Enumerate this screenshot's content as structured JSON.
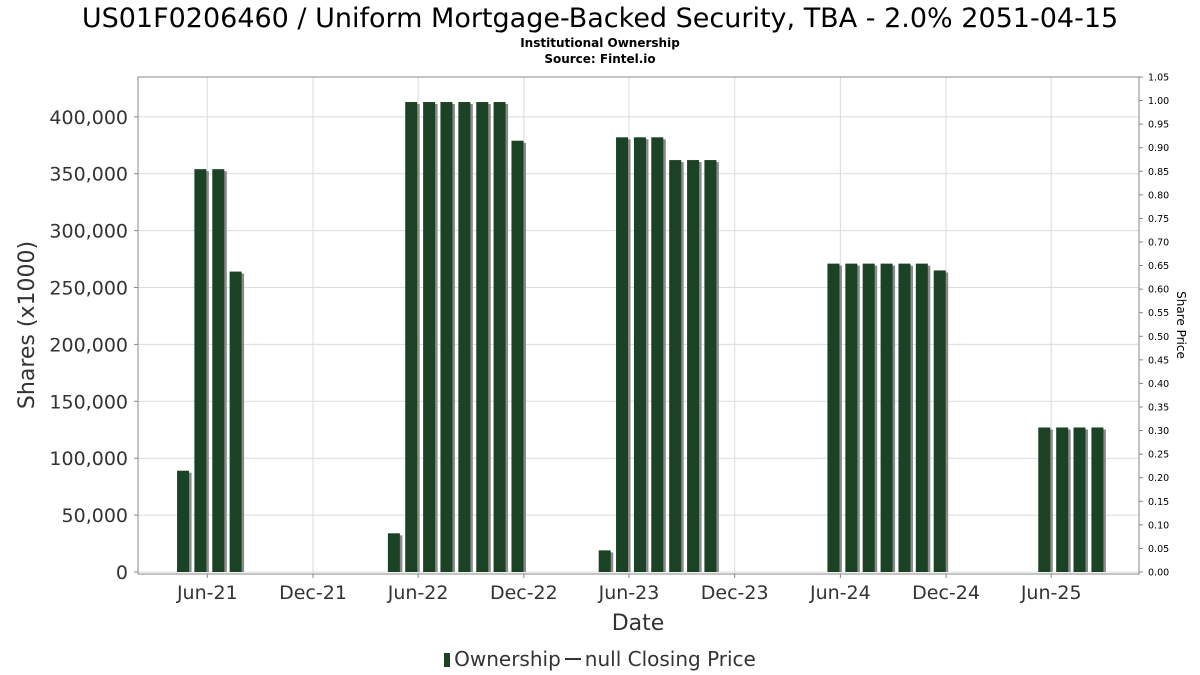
{
  "title": "US01F0206460 / Uniform Mortgage-Backed Security, TBA - 2.0% 2051-04-15",
  "subtitle": "Institutional Ownership",
  "source": "Source: Fintel.io",
  "legend": {
    "ownership": "Ownership",
    "price": "null Closing Price"
  },
  "colors": {
    "bar": "#1b4225",
    "bar_shadow": "#8a8a8a",
    "grid": "#dcdcdc",
    "axis": "#888888",
    "label": "#333333"
  },
  "chart_data": {
    "type": "bar",
    "xlabel": "Date",
    "ylabel": "Shares (x1000)",
    "y2label": "Share Price",
    "ylim": [
      0,
      435000
    ],
    "y2lim": [
      0,
      1.05
    ],
    "y_ticks": [
      0,
      50000,
      100000,
      150000,
      200000,
      250000,
      300000,
      350000,
      400000
    ],
    "y_tick_labels": [
      "0",
      "50,000",
      "100,000",
      "150,000",
      "200,000",
      "250,000",
      "300,000",
      "350,000",
      "400,000"
    ],
    "y2_ticks": [
      "0.00",
      "0.05",
      "0.10",
      "0.15",
      "0.20",
      "0.25",
      "0.30",
      "0.35",
      "0.40",
      "0.45",
      "0.50",
      "0.55",
      "0.60",
      "0.65",
      "0.70",
      "0.75",
      "0.80",
      "0.85",
      "0.90",
      "0.95",
      "1.00",
      "1.05"
    ],
    "x_start": "2021-02-01",
    "x_end": "2025-10-31",
    "x_ticks": [
      {
        "date": "2021-06-01",
        "label": "Jun-21"
      },
      {
        "date": "2021-12-01",
        "label": "Dec-21"
      },
      {
        "date": "2022-06-01",
        "label": "Jun-22"
      },
      {
        "date": "2022-12-01",
        "label": "Dec-22"
      },
      {
        "date": "2023-06-01",
        "label": "Jun-23"
      },
      {
        "date": "2023-12-01",
        "label": "Dec-23"
      },
      {
        "date": "2024-06-01",
        "label": "Jun-24"
      },
      {
        "date": "2024-12-01",
        "label": "Dec-24"
      },
      {
        "date": "2025-06-01",
        "label": "Jun-25"
      }
    ],
    "grid": true,
    "legend_position": "bottom",
    "series": [
      {
        "name": "Ownership",
        "points": [
          {
            "date": "2021-04-20",
            "value": 89000
          },
          {
            "date": "2021-05-20",
            "value": 354000
          },
          {
            "date": "2021-06-20",
            "value": 354000
          },
          {
            "date": "2021-07-20",
            "value": 264000
          },
          {
            "date": "2022-04-20",
            "value": 34000
          },
          {
            "date": "2022-05-20",
            "value": 413000
          },
          {
            "date": "2022-06-20",
            "value": 413000
          },
          {
            "date": "2022-07-20",
            "value": 413000
          },
          {
            "date": "2022-08-20",
            "value": 413000
          },
          {
            "date": "2022-09-20",
            "value": 413000
          },
          {
            "date": "2022-10-20",
            "value": 413000
          },
          {
            "date": "2022-11-20",
            "value": 379000
          },
          {
            "date": "2023-04-20",
            "value": 19000
          },
          {
            "date": "2023-05-20",
            "value": 382000
          },
          {
            "date": "2023-06-20",
            "value": 382000
          },
          {
            "date": "2023-07-20",
            "value": 382000
          },
          {
            "date": "2023-08-20",
            "value": 362000
          },
          {
            "date": "2023-09-20",
            "value": 362000
          },
          {
            "date": "2023-10-20",
            "value": 362000
          },
          {
            "date": "2024-05-20",
            "value": 271000
          },
          {
            "date": "2024-06-20",
            "value": 271000
          },
          {
            "date": "2024-07-20",
            "value": 271000
          },
          {
            "date": "2024-08-20",
            "value": 271000
          },
          {
            "date": "2024-09-20",
            "value": 271000
          },
          {
            "date": "2024-10-20",
            "value": 271000
          },
          {
            "date": "2024-11-20",
            "value": 265000
          },
          {
            "date": "2025-05-20",
            "value": 127000
          },
          {
            "date": "2025-06-20",
            "value": 127000
          },
          {
            "date": "2025-07-20",
            "value": 127000
          },
          {
            "date": "2025-08-20",
            "value": 127000
          }
        ]
      }
    ]
  }
}
